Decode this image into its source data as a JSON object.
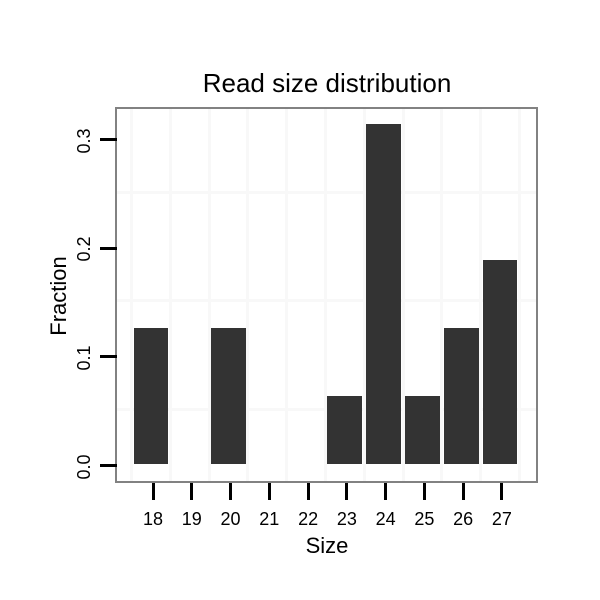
{
  "chart_data": {
    "type": "bar",
    "title": "Read size distribution",
    "xlabel": "Size",
    "ylabel": "Fraction",
    "categories": [
      "18",
      "19",
      "20",
      "21",
      "22",
      "23",
      "24",
      "25",
      "26",
      "27"
    ],
    "values": [
      0.125,
      0,
      0.125,
      0,
      0,
      0.0625,
      0.3125,
      0.0625,
      0.125,
      0.1875
    ],
    "y_ticks": [
      0,
      0.1,
      0.2,
      0.3
    ],
    "y_tick_labels": [
      "0.0",
      "0.1",
      "0.2",
      "0.3"
    ],
    "y_minor_gridlines": [
      0.05,
      0.15,
      0.25
    ],
    "x_minor_gridlines_at_category_boundaries": true,
    "ylim": [
      -0.016,
      0.328
    ],
    "grid": "minor-only",
    "legend": "none",
    "colors": {
      "bar_fill": "#333333",
      "panel_border": "#828282",
      "gridline": "#f8f8f8",
      "tick": "#000000",
      "text": "#000000",
      "background": "#ffffff"
    }
  }
}
